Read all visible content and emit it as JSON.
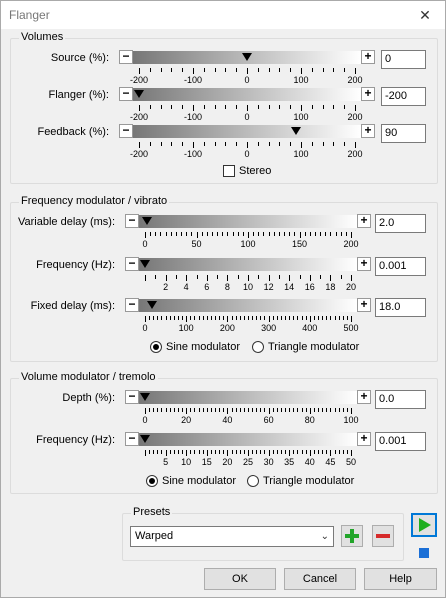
{
  "window": {
    "title": "Flanger",
    "close_glyph": "✕"
  },
  "volumes": {
    "title": "Volumes",
    "source": {
      "label": "Source (%):",
      "value": "0",
      "ticks": [
        "-200",
        "-100",
        "0",
        "100",
        "200"
      ],
      "level": 0.5
    },
    "flanger": {
      "label": "Flanger (%):",
      "value": "-200",
      "ticks": [
        "-200",
        "-100",
        "0",
        "100",
        "200"
      ],
      "level": 0.0
    },
    "feedback": {
      "label": "Feedback (%):",
      "value": "90",
      "ticks": [
        "-200",
        "-100",
        "0",
        "100",
        "200"
      ],
      "level": 0.725
    },
    "stereo_label": "Stereo",
    "stereo_checked": false
  },
  "freq_mod": {
    "title": "Frequency modulator / vibrato",
    "variable_delay": {
      "label": "Variable delay (ms):",
      "value": "2.0",
      "ticks": [
        "0",
        "50",
        "100",
        "150",
        "200"
      ],
      "level": 0.01
    },
    "frequency": {
      "label": "Frequency (Hz):",
      "value": "0.001",
      "ticks": [
        "2",
        "4",
        "6",
        "8",
        "10",
        "12",
        "14",
        "16",
        "18",
        "20"
      ],
      "level": 0.0
    },
    "fixed_delay": {
      "label": "Fixed delay (ms):",
      "value": "18.0",
      "ticks": [
        "0",
        "100",
        "200",
        "300",
        "400",
        "500"
      ],
      "level": 0.036
    },
    "sine_label": "Sine modulator",
    "triangle_label": "Triangle modulator",
    "selected": "sine"
  },
  "vol_mod": {
    "title": "Volume modulator / tremolo",
    "depth": {
      "label": "Depth (%):",
      "value": "0.0",
      "ticks": [
        "0",
        "20",
        "40",
        "60",
        "80",
        "100"
      ],
      "level": 0.0
    },
    "frequency": {
      "label": "Frequency (Hz):",
      "value": "0.001",
      "ticks": [
        "5",
        "10",
        "15",
        "20",
        "25",
        "30",
        "35",
        "40",
        "45",
        "50"
      ],
      "level": 0.0
    },
    "sine_label": "Sine modulator",
    "triangle_label": "Triangle modulator",
    "selected": "sine"
  },
  "presets": {
    "title": "Presets",
    "selected": "Warped"
  },
  "buttons": {
    "ok": "OK",
    "cancel": "Cancel",
    "help": "Help"
  },
  "colors": {
    "play": "#1fae1f",
    "stop": "#1b6fd6",
    "add": "#22a52a",
    "remove": "#d62a2a",
    "focus": "#0078d7"
  }
}
